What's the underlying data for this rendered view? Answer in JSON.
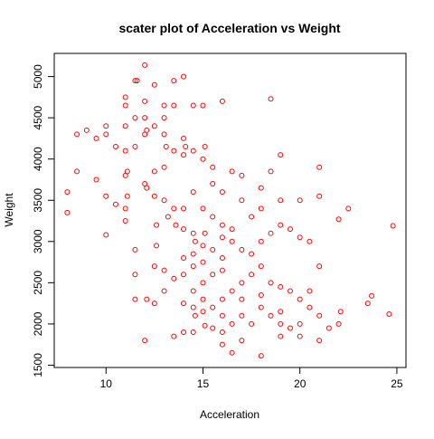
{
  "chart_data": {
    "type": "scatter",
    "title": "scater plot of Acceleration vs Weight",
    "x_label": "Acceleration",
    "y_label": "Weight",
    "color": "#ff0000",
    "xlim": [
      7.33,
      25.47
    ],
    "ylim": [
      1472,
      5281
    ],
    "xticks": [
      10,
      15,
      20,
      25
    ],
    "yticks": [
      1500,
      2000,
      2500,
      3000,
      3500,
      4000,
      4500,
      5000
    ],
    "x": [
      12,
      11.5,
      11.6,
      13.5,
      14,
      11,
      12.5,
      11,
      12,
      13,
      13.5,
      14.5,
      15,
      11.5,
      12,
      13,
      11,
      10,
      10,
      8.5,
      9,
      9.5,
      10.5,
      11,
      11.5,
      12,
      12.1,
      12.5,
      13,
      14,
      14.1,
      13.1,
      13.5,
      14.5,
      15.1,
      14,
      15,
      15.5,
      16,
      18.5,
      13,
      12.5,
      11,
      11.1,
      12,
      12.1,
      8.5,
      9.5,
      10,
      8,
      8,
      10,
      10.5,
      11,
      11,
      11.5,
      11.5,
      11.1,
      12.5,
      13,
      13.5,
      13.2,
      12.6,
      13.6,
      14,
      14.5,
      15,
      15.5,
      16,
      15.1,
      14.6,
      15,
      15.5,
      16,
      16.5,
      17,
      17.5,
      18,
      18.5,
      19,
      19.5,
      20,
      20.5,
      21,
      21,
      22,
      22.5,
      24.8,
      18,
      17,
      16.5,
      18.5,
      19,
      19,
      20,
      18,
      17.5,
      16,
      15,
      14.5,
      14,
      13.5,
      13,
      12.5,
      12.6,
      13,
      12.5,
      12,
      12.1,
      11.5,
      14,
      14.5,
      15,
      14.6,
      15.5,
      16,
      16.5,
      17,
      17.5,
      18,
      18.5,
      19,
      19.5,
      20,
      20.5,
      21,
      19,
      18.5,
      18,
      17.5,
      17,
      16.5,
      16,
      15.5,
      15.1,
      14.5,
      14,
      13.5,
      16.5,
      17,
      18,
      19,
      20,
      21,
      21.5,
      22,
      22.1,
      23.5,
      23.7,
      24.6,
      20,
      19.5,
      16,
      15,
      15.5,
      16,
      14,
      14.5,
      16.5,
      17,
      16,
      15.5,
      14,
      14.5,
      17,
      18,
      21,
      20.5,
      19,
      16,
      15,
      14.5
    ],
    "y": [
      5140,
      4950,
      4950,
      4950,
      5000,
      4750,
      4900,
      4650,
      4700,
      4650,
      4650,
      4650,
      4650,
      4500,
      4500,
      4500,
      4400,
      4400,
      4300,
      4300,
      4350,
      4250,
      4150,
      4100,
      4150,
      4300,
      4350,
      4400,
      4300,
      4250,
      4150,
      4150,
      4100,
      4100,
      4150,
      4050,
      4000,
      3900,
      4700,
      4730,
      3900,
      3850,
      3800,
      3850,
      3700,
      3650,
      3850,
      3750,
      3550,
      3600,
      3350,
      3080,
      3450,
      3400,
      3250,
      2900,
      2600,
      3550,
      3550,
      3500,
      3400,
      3300,
      3200,
      3200,
      3150,
      3100,
      3400,
      3300,
      3200,
      3100,
      3000,
      2950,
      2900,
      3050,
      3000,
      2900,
      2850,
      3000,
      3100,
      3200,
      3150,
      3050,
      3000,
      3550,
      3900,
      3270,
      3400,
      3190,
      3650,
      3800,
      3850,
      3850,
      4050,
      3500,
      3500,
      3400,
      3300,
      2800,
      2750,
      2700,
      2600,
      2550,
      2650,
      2700,
      2950,
      2400,
      2250,
      1800,
      2300,
      2300,
      2250,
      2200,
      2150,
      2100,
      2200,
      2300,
      2400,
      2500,
      2600,
      2700,
      2500,
      2450,
      2400,
      2300,
      2200,
      2100,
      2000,
      2100,
      2200,
      2000,
      2100,
      2000,
      1900,
      1950,
      1980,
      1900,
      1900,
      1850,
      1650,
      1800,
      1613,
      1850,
      1850,
      1800,
      1950,
      2000,
      2150,
      2250,
      2340,
      2120,
      2000,
      1950,
      1750,
      2500,
      2600,
      2650,
      2800,
      2850,
      3150,
      3500,
      3600,
      3700,
      3400,
      3600,
      2300,
      2350,
      2700,
      2400,
      2150,
      2100,
      2300,
      2400
    ]
  }
}
